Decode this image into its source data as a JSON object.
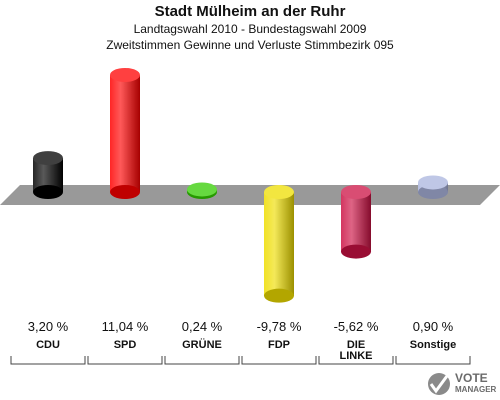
{
  "header": {
    "title": "Stadt Mülheim an der Ruhr",
    "subtitle1": "Landtagswahl 2010 - Bundestagswahl 2009",
    "subtitle2": "Zweitstimmen Gewinne und Verluste Stimmbezirk 095"
  },
  "logo": {
    "line1": "VOTE",
    "line2": "MANAGER"
  },
  "chart_data": {
    "type": "bar",
    "categories": [
      "CDU",
      "SPD",
      "GRÜNE",
      "FDP",
      "DIE LINKE",
      "Sonstige"
    ],
    "values": [
      3.2,
      11.04,
      0.24,
      -9.78,
      -5.62,
      0.9
    ],
    "value_labels": [
      "3,20 %",
      "11,04 %",
      "0,24 %",
      "-9,78 %",
      "-5,62 %",
      "0,90 %"
    ],
    "colors": [
      "#000000",
      "#ff0000",
      "#33cc00",
      "#eedd00",
      "#cc1144",
      "#aab4dd"
    ],
    "title": "Stadt Mülheim an der Ruhr",
    "xlabel": "",
    "ylabel": "",
    "grid": false
  }
}
